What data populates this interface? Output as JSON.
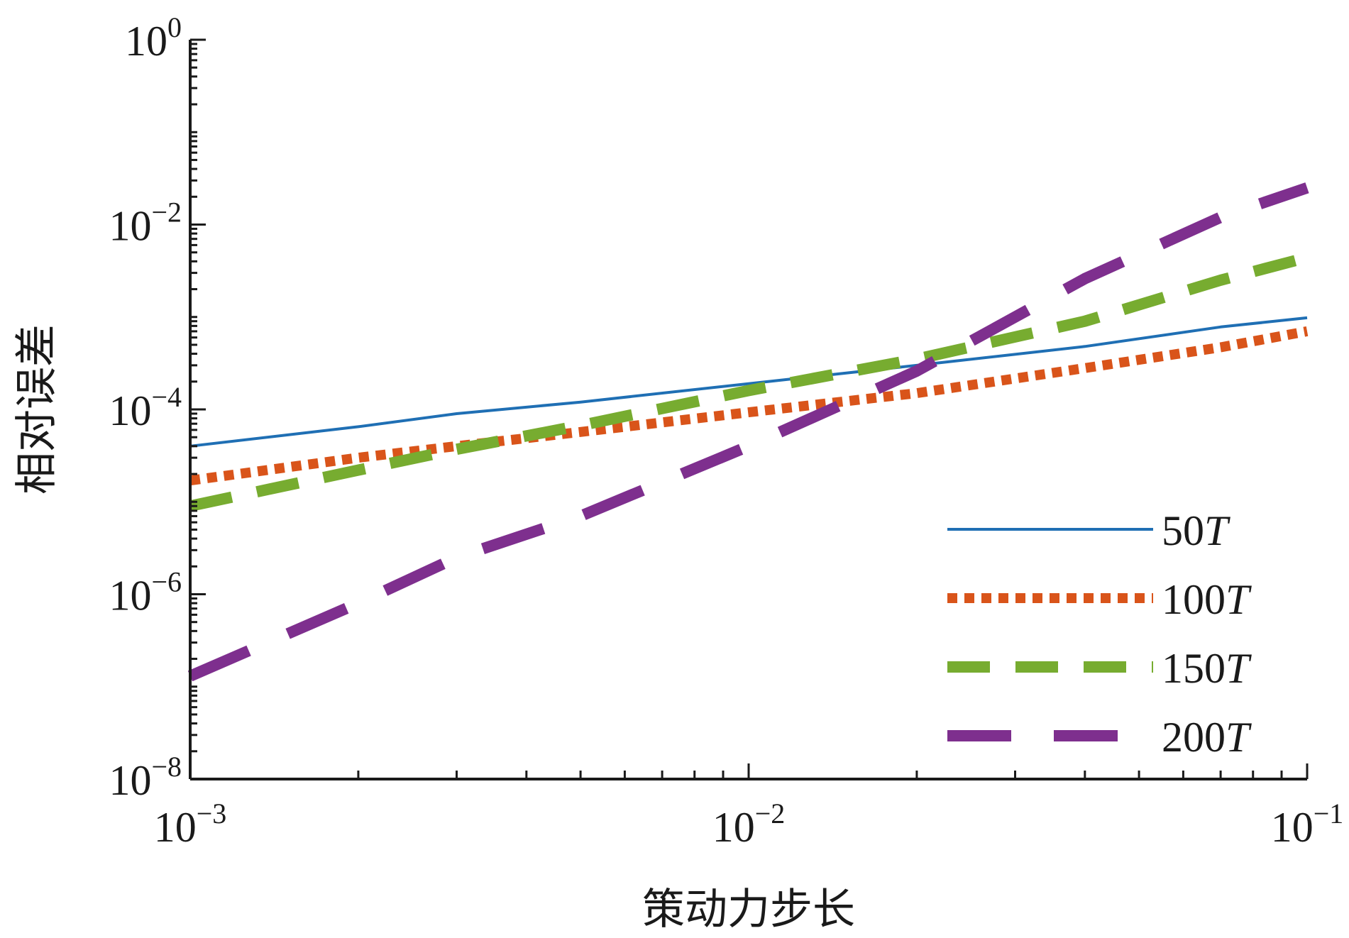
{
  "chart_data": {
    "type": "line",
    "title": "",
    "xlabel": "策动力步长",
    "ylabel": "相对误差",
    "xscale": "log",
    "yscale": "log",
    "xlim": [
      0.001,
      0.1
    ],
    "ylim": [
      1e-08,
      1
    ],
    "grid": false,
    "legend_position": "bottom-right",
    "x_ticks": [
      {
        "base": "10",
        "exp": "−3",
        "value": 0.001
      },
      {
        "base": "10",
        "exp": "−2",
        "value": 0.01
      },
      {
        "base": "10",
        "exp": "−1",
        "value": 0.1
      }
    ],
    "y_ticks": [
      {
        "base": "10",
        "exp": "0",
        "value": 1
      },
      {
        "base": "10",
        "exp": "−2",
        "value": 0.01
      },
      {
        "base": "10",
        "exp": "−4",
        "value": 0.0001
      },
      {
        "base": "10",
        "exp": "−6",
        "value": 1e-06
      },
      {
        "base": "10",
        "exp": "−8",
        "value": 1e-08
      }
    ],
    "series": [
      {
        "name": "50",
        "name_italic": "T",
        "color": "#1f6fb4",
        "style": "solid",
        "x": [
          0.001,
          0.002,
          0.003,
          0.005,
          0.01,
          0.02,
          0.04,
          0.07,
          0.1
        ],
        "y": [
          4e-05,
          6.5e-05,
          9e-05,
          0.00012,
          0.00019,
          0.0003,
          0.00048,
          0.00078,
          0.00098
        ]
      },
      {
        "name": "100",
        "name_italic": "T",
        "color": "#d9541a",
        "style": "dotted",
        "x": [
          0.001,
          0.002,
          0.003,
          0.005,
          0.01,
          0.02,
          0.04,
          0.07,
          0.1
        ],
        "y": [
          1.7e-05,
          3e-05,
          4e-05,
          5.7e-05,
          9.3e-05,
          0.00015,
          0.00028,
          0.00047,
          0.0007
        ]
      },
      {
        "name": "150",
        "name_italic": "T",
        "color": "#77ac30",
        "style": "dashed",
        "x": [
          0.001,
          0.002,
          0.003,
          0.005,
          0.01,
          0.02,
          0.04,
          0.07,
          0.1
        ],
        "y": [
          9e-06,
          2.2e-05,
          3.7e-05,
          6.7e-05,
          0.00016,
          0.00035,
          0.0009,
          0.0025,
          0.0044
        ]
      },
      {
        "name": "200",
        "name_italic": "T",
        "color": "#7e2f8e",
        "style": "long-dashed",
        "x": [
          0.001,
          0.002,
          0.003,
          0.005,
          0.01,
          0.02,
          0.04,
          0.07,
          0.1
        ],
        "y": [
          1.3e-07,
          8e-07,
          2.5e-06,
          7e-06,
          4e-05,
          0.00026,
          0.0026,
          0.012,
          0.025
        ]
      }
    ]
  }
}
